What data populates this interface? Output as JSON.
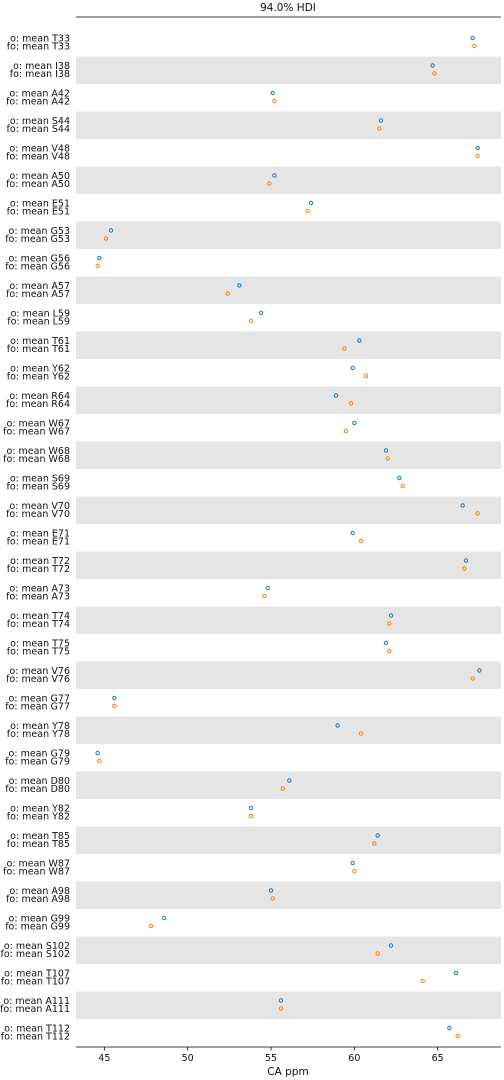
{
  "chart_data": {
    "type": "scatter",
    "title": "94.0% HDI",
    "xlabel": "CA ppm",
    "ylabel": "",
    "xlim": [
      43.3,
      68.8
    ],
    "xticks": [
      45,
      50,
      55,
      60,
      65
    ],
    "grid": false,
    "band_color": "#e5e5e5",
    "series": [
      {
        "name": "o",
        "color": "#1f77b4"
      },
      {
        "name": "fo",
        "color": "#ff7f0e"
      }
    ],
    "rows": [
      {
        "label_o": "o: mean T33",
        "label_fo": "fo: mean T33",
        "o": 67.1,
        "fo": 67.2
      },
      {
        "label_o": "o: mean I38",
        "label_fo": "fo: mean I38",
        "o": 64.7,
        "fo": 64.8
      },
      {
        "label_o": "o: mean A42",
        "label_fo": "fo: mean A42",
        "o": 55.1,
        "fo": 55.2
      },
      {
        "label_o": "o: mean S44",
        "label_fo": "fo: mean S44",
        "o": 61.6,
        "fo": 61.5
      },
      {
        "label_o": "o: mean V48",
        "label_fo": "fo: mean V48",
        "o": 67.4,
        "fo": 67.4
      },
      {
        "label_o": "o: mean A50",
        "label_fo": "fo: mean A50",
        "o": 55.2,
        "fo": 54.9
      },
      {
        "label_o": "o: mean E51",
        "label_fo": "fo: mean E51",
        "o": 57.4,
        "fo": 57.2
      },
      {
        "label_o": "o: mean G53",
        "label_fo": "fo: mean G53",
        "o": 45.4,
        "fo": 45.1
      },
      {
        "label_o": "o: mean G56",
        "label_fo": "fo: mean G56",
        "o": 44.7,
        "fo": 44.6
      },
      {
        "label_o": "o: mean A57",
        "label_fo": "fo: mean A57",
        "o": 53.1,
        "fo": 52.4
      },
      {
        "label_o": "o: mean L59",
        "label_fo": "fo: mean L59",
        "o": 54.4,
        "fo": 53.8
      },
      {
        "label_o": "o: mean T61",
        "label_fo": "fo: mean T61",
        "o": 60.3,
        "fo": 59.4
      },
      {
        "label_o": "o: mean Y62",
        "label_fo": "fo: mean Y62",
        "o": 59.9,
        "fo": 60.7
      },
      {
        "label_o": "o: mean R64",
        "label_fo": "fo: mean R64",
        "o": 58.9,
        "fo": 59.8
      },
      {
        "label_o": "o: mean W67",
        "label_fo": "fo: mean W67",
        "o": 60.0,
        "fo": 59.5
      },
      {
        "label_o": "o: mean W68",
        "label_fo": "fo: mean W68",
        "o": 61.9,
        "fo": 62.0
      },
      {
        "label_o": "o: mean S69",
        "label_fo": "fo: mean S69",
        "o": 62.7,
        "fo": 62.9
      },
      {
        "label_o": "o: mean V70",
        "label_fo": "fo: mean V70",
        "o": 66.5,
        "fo": 67.4
      },
      {
        "label_o": "o: mean E71",
        "label_fo": "fo: mean E71",
        "o": 59.9,
        "fo": 60.4
      },
      {
        "label_o": "o: mean T72",
        "label_fo": "fo: mean T72",
        "o": 66.7,
        "fo": 66.6
      },
      {
        "label_o": "o: mean A73",
        "label_fo": "fo: mean A73",
        "o": 54.8,
        "fo": 54.6
      },
      {
        "label_o": "o: mean T74",
        "label_fo": "fo: mean T74",
        "o": 62.2,
        "fo": 62.1
      },
      {
        "label_o": "o: mean T75",
        "label_fo": "fo: mean T75",
        "o": 61.9,
        "fo": 62.1
      },
      {
        "label_o": "o: mean V76",
        "label_fo": "fo: mean V76",
        "o": 67.5,
        "fo": 67.1
      },
      {
        "label_o": "o: mean G77",
        "label_fo": "fo: mean G77",
        "o": 45.6,
        "fo": 45.6
      },
      {
        "label_o": "o: mean Y78",
        "label_fo": "fo: mean Y78",
        "o": 59.0,
        "fo": 60.4
      },
      {
        "label_o": "o: mean G79",
        "label_fo": "fo: mean G79",
        "o": 44.6,
        "fo": 44.7
      },
      {
        "label_o": "o: mean D80",
        "label_fo": "fo: mean D80",
        "o": 56.1,
        "fo": 55.7
      },
      {
        "label_o": "o: mean Y82",
        "label_fo": "fo: mean Y82",
        "o": 53.8,
        "fo": 53.8
      },
      {
        "label_o": "o: mean T85",
        "label_fo": "fo: mean T85",
        "o": 61.4,
        "fo": 61.2
      },
      {
        "label_o": "o: mean W87",
        "label_fo": "fo: mean W87",
        "o": 59.9,
        "fo": 60.0
      },
      {
        "label_o": "o: mean A98",
        "label_fo": "fo: mean A98",
        "o": 55.0,
        "fo": 55.1
      },
      {
        "label_o": "o: mean G99",
        "label_fo": "fo: mean G99",
        "o": 48.6,
        "fo": 47.8
      },
      {
        "label_o": "o: mean S102",
        "label_fo": "fo: mean S102",
        "o": 62.2,
        "fo": 61.4
      },
      {
        "label_o": "o: mean T107",
        "label_fo": "fo: mean T107",
        "o": 66.1,
        "fo": 64.1
      },
      {
        "label_o": "o: mean A111",
        "label_fo": "fo: mean A111",
        "o": 55.6,
        "fo": 55.6
      },
      {
        "label_o": "o: mean T112",
        "label_fo": "fo: mean T112",
        "o": 65.7,
        "fo": 66.2
      }
    ]
  }
}
